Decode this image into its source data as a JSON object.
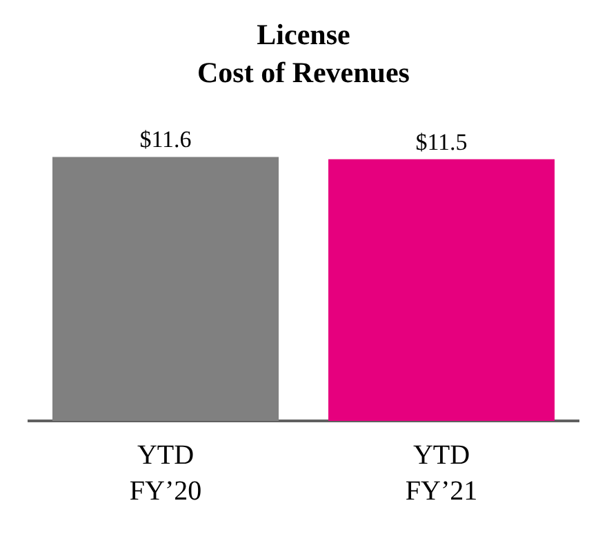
{
  "chart_data": {
    "type": "bar",
    "title": "License\nCost of Revenues",
    "categories": [
      "YTD\nFY’20",
      "YTD\nFY’21"
    ],
    "values": [
      11.6,
      11.5
    ],
    "colors": [
      "#808080",
      "#e6007e"
    ],
    "value_labels": [
      "$11.6",
      "$11.5"
    ]
  }
}
